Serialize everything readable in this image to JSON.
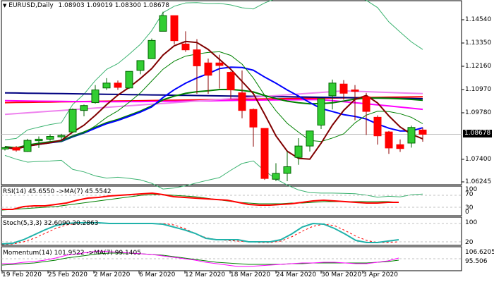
{
  "header": {
    "symbol_label": "EURUSD,Daily",
    "ohlc": "1.08903 1.09019 1.08300 1.08678",
    "collapse_icon": "triangle-down-icon"
  },
  "price_axis": {
    "ticks": [
      "1.14540",
      "1.13350",
      "1.12160",
      "1.10970",
      "1.09780",
      "1.07400",
      "1.06245"
    ],
    "current_price": "1.08678"
  },
  "indicators": {
    "rsi": {
      "label": "RSI(14) 45.6550  ->MA(7) 45.5542",
      "levels": [
        "100",
        "70",
        "30",
        "0"
      ]
    },
    "stoch": {
      "label": "Stoch(5,3,3) 32.6090 20.2863",
      "levels": [
        "100",
        "80",
        "20",
        "0"
      ]
    },
    "momentum": {
      "label": "Momentum(14) 101.9522  ->MA(7) 99.1405",
      "levels": [
        "106.6205",
        "100",
        "95.506"
      ]
    }
  },
  "date_axis": {
    "labels": [
      "19 Feb 2020",
      "25 Feb 2020",
      "2 Mar 2020",
      "6 Mar 2020",
      "12 Mar 2020",
      "18 Mar 2020",
      "24 Mar 2020",
      "30 Mar 2020",
      "3 Apr 2020"
    ]
  },
  "colors": {
    "bull": "#32CD32",
    "bear": "#FF0000",
    "ema_fast": "#800000",
    "ma_blue": "#0000FF",
    "ma_red": "#FF0000",
    "ma_navy": "#000080",
    "ma_magenta": "#FF00FF",
    "ma_violet": "#EE82EE",
    "ma_green": "#008000",
    "bollinger": "#3CB371",
    "rsi": "#FF0000",
    "stoch_main": "#20B2AA",
    "momentum": "#FF00FF"
  },
  "chart_data": {
    "type": "candlestick",
    "title": "EURUSD,Daily",
    "ylim": [
      1.06245,
      1.1454
    ],
    "candles": [
      {
        "o": 1.0795,
        "h": 1.0805,
        "l": 1.0785,
        "c": 1.08
      },
      {
        "o": 1.08,
        "h": 1.0808,
        "l": 1.0779,
        "c": 1.0787
      },
      {
        "o": 1.078,
        "h": 1.0845,
        "l": 1.0778,
        "c": 1.0837
      },
      {
        "o": 1.0835,
        "h": 1.0857,
        "l": 1.0798,
        "c": 1.0843
      },
      {
        "o": 1.0843,
        "h": 1.0868,
        "l": 1.0835,
        "c": 1.0857
      },
      {
        "o": 1.086,
        "h": 1.087,
        "l": 1.084,
        "c": 1.0862
      },
      {
        "o": 1.088,
        "h": 1.1,
        "l": 1.0875,
        "c": 1.0995
      },
      {
        "o": 1.099,
        "h": 1.102,
        "l": 1.096,
        "c": 1.1015
      },
      {
        "o": 1.103,
        "h": 1.112,
        "l": 1.1025,
        "c": 1.1095
      },
      {
        "o": 1.1105,
        "h": 1.1155,
        "l": 1.1095,
        "c": 1.113
      },
      {
        "o": 1.113,
        "h": 1.1143,
        "l": 1.1095,
        "c": 1.1108
      },
      {
        "o": 1.1105,
        "h": 1.119,
        "l": 1.11,
        "c": 1.119
      },
      {
        "o": 1.1195,
        "h": 1.1245,
        "l": 1.1175,
        "c": 1.1245
      },
      {
        "o": 1.1255,
        "h": 1.1358,
        "l": 1.1255,
        "c": 1.1348
      },
      {
        "o": 1.1395,
        "h": 1.1495,
        "l": 1.1398,
        "c": 1.1475
      },
      {
        "o": 1.1475,
        "h": 1.1475,
        "l": 1.1328,
        "c": 1.1347
      },
      {
        "o": 1.133,
        "h": 1.1395,
        "l": 1.129,
        "c": 1.13
      },
      {
        "o": 1.13,
        "h": 1.1355,
        "l": 1.1075,
        "c": 1.1218
      },
      {
        "o": 1.1233,
        "h": 1.1255,
        "l": 1.1075,
        "c": 1.117
      },
      {
        "o": 1.1233,
        "h": 1.1275,
        "l": 1.1102,
        "c": 1.122
      },
      {
        "o": 1.1185,
        "h": 1.119,
        "l": 1.105,
        "c": 1.1095
      },
      {
        "o": 1.108,
        "h": 1.1195,
        "l": 1.095,
        "c": 1.099
      },
      {
        "o": 1.0995,
        "h": 1.1,
        "l": 1.0805,
        "c": 1.0905
      },
      {
        "o": 1.0898,
        "h": 1.0898,
        "l": 1.0635,
        "c": 1.0642
      },
      {
        "o": 1.0638,
        "h": 1.072,
        "l": 1.0628,
        "c": 1.0668
      },
      {
        "o": 1.0668,
        "h": 1.078,
        "l": 1.0628,
        "c": 1.0702
      },
      {
        "o": 1.075,
        "h": 1.0848,
        "l": 1.0712,
        "c": 1.0808
      },
      {
        "o": 1.0808,
        "h": 1.088,
        "l": 1.078,
        "c": 1.0885
      },
      {
        "o": 1.0915,
        "h": 1.1035,
        "l": 1.0895,
        "c": 1.105
      },
      {
        "o": 1.1065,
        "h": 1.1148,
        "l": 1.0995,
        "c": 1.113
      },
      {
        "o": 1.1125,
        "h": 1.1145,
        "l": 1.1045,
        "c": 1.1078
      },
      {
        "o": 1.1095,
        "h": 1.112,
        "l": 1.094,
        "c": 1.109
      },
      {
        "o": 1.106,
        "h": 1.108,
        "l": 1.0865,
        "c": 1.0985
      },
      {
        "o": 1.0955,
        "h": 1.0965,
        "l": 1.0815,
        "c": 1.086
      },
      {
        "o": 1.088,
        "h": 1.0885,
        "l": 1.0768,
        "c": 1.0798
      },
      {
        "o": 1.0815,
        "h": 1.0842,
        "l": 1.0778,
        "c": 1.0795
      },
      {
        "o": 1.0823,
        "h": 1.0912,
        "l": 1.08,
        "c": 1.0903
      },
      {
        "o": 1.089,
        "h": 1.0902,
        "l": 1.083,
        "c": 1.0868
      }
    ]
  }
}
